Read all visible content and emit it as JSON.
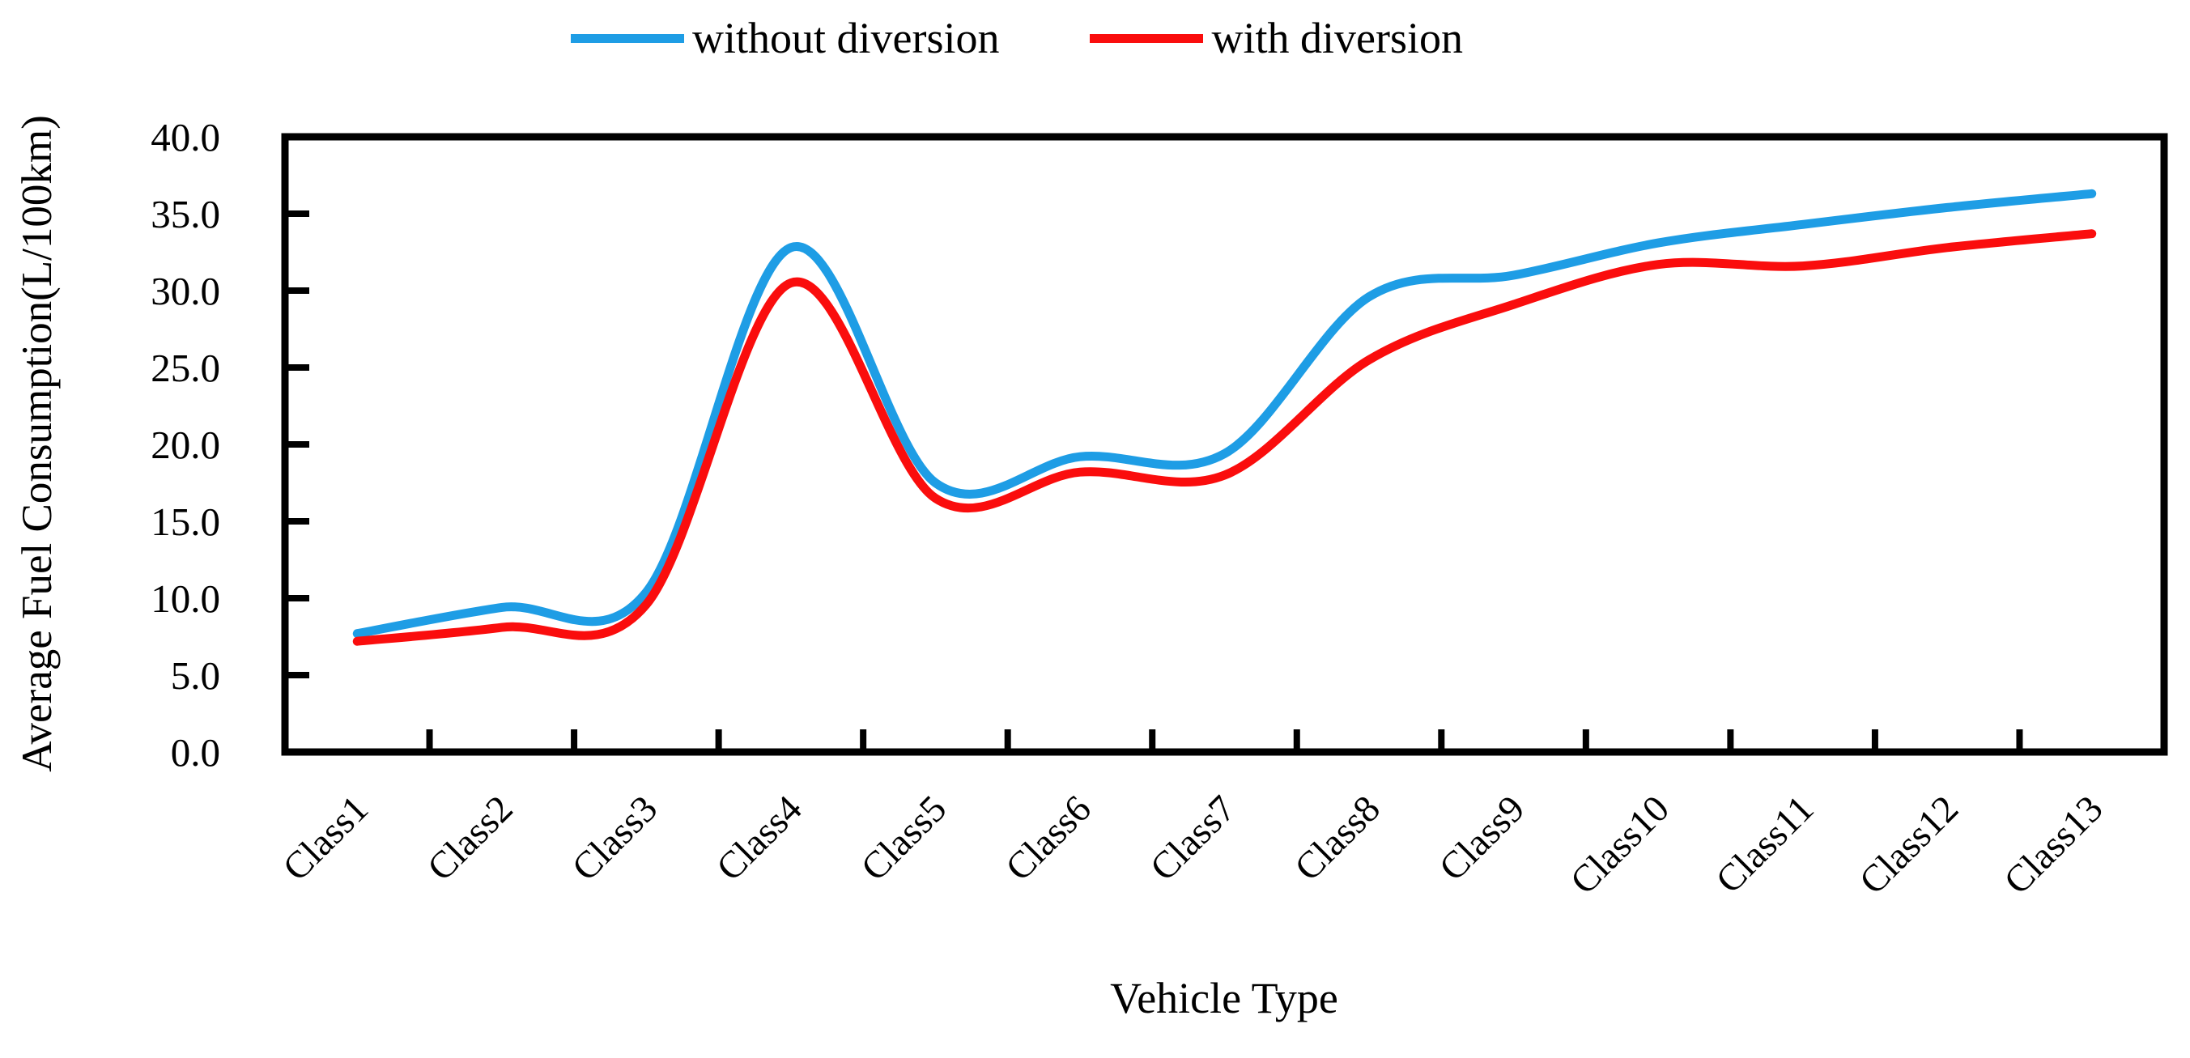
{
  "figure": {
    "background": "#ffffff"
  },
  "legend": {
    "items": [
      {
        "label": "without diversion",
        "color": "#1E9DE5"
      },
      {
        "label": "with diversion",
        "color": "#FA0D0D"
      }
    ]
  },
  "axes": {
    "y_title": "Average Fuel Consumption(L/100km)",
    "x_title": "Vehicle Type",
    "y_tick_labels": [
      "0.0",
      "5.0",
      "10.0",
      "15.0",
      "20.0",
      "25.0",
      "30.0",
      "35.0",
      "40.0"
    ],
    "axis_color": "#000000"
  },
  "chart_data": {
    "type": "line",
    "title": "",
    "xlabel": "Vehicle Type",
    "ylabel": "Average Fuel Consumption(L/100km)",
    "categories": [
      "Class1",
      "Class2",
      "Class3",
      "Class4",
      "Class5",
      "Class6",
      "Class7",
      "Class8",
      "Class9",
      "Class10",
      "Class11",
      "Class12",
      "Class13"
    ],
    "series": [
      {
        "name": "without diversion",
        "color": "#1E9DE5",
        "values": [
          7.7,
          9.4,
          10.4,
          32.8,
          17.5,
          19.2,
          19.4,
          29.6,
          31.0,
          33.1,
          34.3,
          35.4,
          36.3
        ]
      },
      {
        "name": "with diversion",
        "color": "#FA0D0D",
        "values": [
          7.2,
          8.1,
          9.6,
          30.5,
          16.5,
          18.2,
          18.0,
          25.5,
          29.1,
          31.7,
          31.6,
          32.8,
          33.7
        ]
      }
    ],
    "ylim": [
      0,
      40
    ],
    "y_tick_step": 5,
    "grid": false,
    "smooth": true,
    "legend_position": "top"
  }
}
